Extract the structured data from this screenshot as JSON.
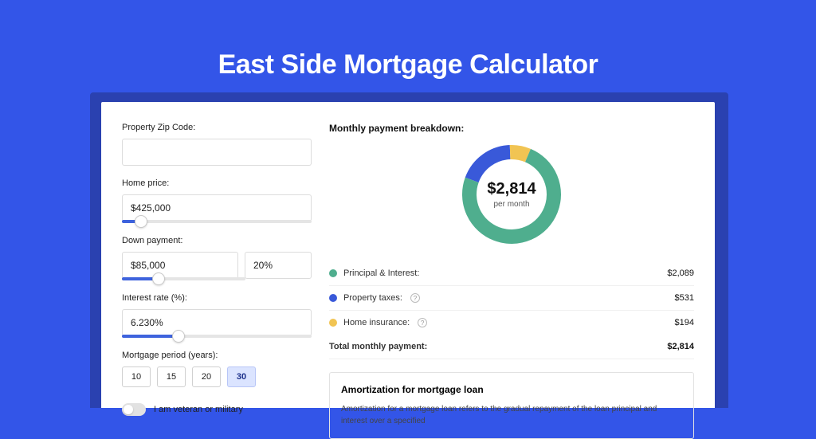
{
  "page": {
    "title": "East Side Mortgage Calculator",
    "bg_color": "#3355e8",
    "shadow_color": "#2a41b0"
  },
  "form": {
    "zip": {
      "label": "Property Zip Code:",
      "value": ""
    },
    "home_price": {
      "label": "Home price:",
      "value": "$425,000",
      "slider_pct": 10
    },
    "down_payment": {
      "label": "Down payment:",
      "amount": "$85,000",
      "percent": "20%",
      "slider_pct": 20
    },
    "interest_rate": {
      "label": "Interest rate (%):",
      "value": "6.230%",
      "slider_pct": 30
    },
    "mortgage_period": {
      "label": "Mortgage period (years):",
      "options": [
        "10",
        "15",
        "20",
        "30"
      ],
      "selected": "30"
    },
    "veteran": {
      "label": "I am veteran or military",
      "checked": false
    }
  },
  "breakdown": {
    "title": "Monthly payment breakdown:",
    "center_amount": "$2,814",
    "center_sub": "per month",
    "donut": {
      "type": "donut",
      "size": 124,
      "thickness": 18,
      "background_color": "#ffffff",
      "slices": [
        {
          "label": "Principal & Interest:",
          "value": 2089,
          "display": "$2,089",
          "color": "#4fae8e",
          "help": false
        },
        {
          "label": "Property taxes:",
          "value": 531,
          "display": "$531",
          "color": "#3959d9",
          "help": true
        },
        {
          "label": "Home insurance:",
          "value": 194,
          "display": "$194",
          "color": "#f1c453",
          "help": true
        }
      ]
    },
    "total": {
      "label": "Total monthly payment:",
      "display": "$2,814"
    }
  },
  "amortization": {
    "title": "Amortization for mortgage loan",
    "text": "Amortization for a mortgage loan refers to the gradual repayment of the loan principal and interest over a specified"
  }
}
